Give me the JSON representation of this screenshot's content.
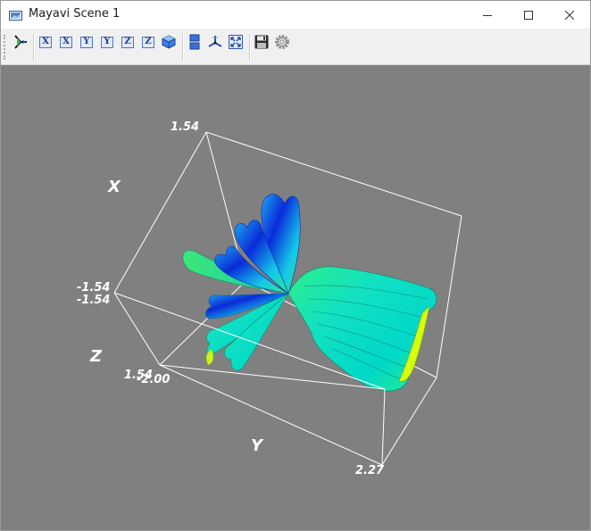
{
  "window": {
    "title": "Mayavi Scene 1",
    "icon": "mayavi-scene-icon",
    "controls": {
      "minimize": "minimize-icon",
      "maximize": "maximize-icon",
      "close": "close-icon"
    }
  },
  "toolbar": {
    "buttons": [
      {
        "name": "mayavi-pipeline-icon",
        "label": ""
      },
      {
        "name": "view-x-plus-icon",
        "label": "X"
      },
      {
        "name": "view-x-minus-icon",
        "label": "X"
      },
      {
        "name": "view-y-plus-icon",
        "label": "Y"
      },
      {
        "name": "view-y-minus-icon",
        "label": "Y"
      },
      {
        "name": "view-z-plus-icon",
        "label": "Z"
      },
      {
        "name": "view-z-minus-icon",
        "label": "Z"
      },
      {
        "name": "isometric-view-icon",
        "label": ""
      },
      {
        "name": "parallel-projection-icon",
        "label": ""
      },
      {
        "name": "toggle-axes-icon",
        "label": ""
      },
      {
        "name": "full-screen-icon",
        "label": ""
      },
      {
        "name": "save-icon",
        "label": ""
      },
      {
        "name": "configure-icon",
        "label": ""
      }
    ]
  },
  "scene": {
    "background": "#808080",
    "axes": {
      "x_label": "X",
      "y_label": "Y",
      "z_label": "Z",
      "ticks": {
        "x_max": "1.54",
        "x_min": "-1.54",
        "z_min": "-1.54",
        "z_max": "1.54",
        "y_min": "-2.00",
        "y_max": "2.27"
      }
    },
    "surface_colormap": [
      "#0a1fd6",
      "#1ea8f0",
      "#00e6c8",
      "#2cf08a",
      "#9cf020",
      "#e6ff00"
    ]
  }
}
